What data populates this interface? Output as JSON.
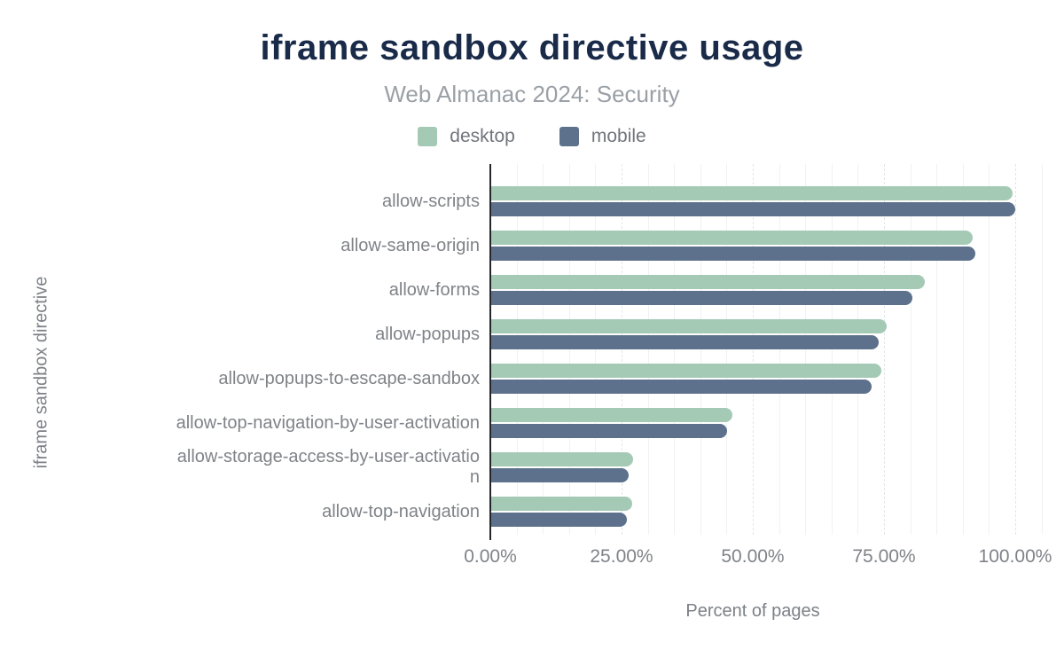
{
  "chart": {
    "title": "iframe sandbox directive usage",
    "subtitle": "Web Almanac 2024: Security",
    "xlabel": "Percent of pages",
    "ylabel": "iframe sandbox directive",
    "legend": {
      "items": [
        {
          "label": "desktop",
          "color": "#a4cab6"
        },
        {
          "label": "mobile",
          "color": "#5d718c"
        }
      ]
    },
    "colors": {
      "title_text": "#1a2b49",
      "subtitle_text": "#9aa0a6",
      "axis_text": "#7f8388",
      "axis_line": "#23262b",
      "desktop_bar": "#a4cab6",
      "mobile_bar": "#5d718c",
      "background": "#ffffff"
    }
  },
  "chart_data": {
    "type": "bar",
    "orientation": "horizontal",
    "title": "iframe sandbox directive usage",
    "subtitle": "Web Almanac 2024: Security",
    "xlabel": "Percent of pages",
    "ylabel": "iframe sandbox directive",
    "xlim": [
      0,
      105
    ],
    "x_tick_labels": [
      "0.00%",
      "25.00%",
      "50.00%",
      "75.00%",
      "100.00%"
    ],
    "x_tick_values": [
      0,
      25,
      50,
      75,
      100
    ],
    "grid": "vertical gridlines every 5%, dashed at 25% multiples",
    "legend_position": "top-center",
    "categories": [
      "allow-scripts",
      "allow-same-origin",
      "allow-forms",
      "allow-popups",
      "allow-popups-to-escape-sandbox",
      "allow-top-navigation-by-user-activation",
      "allow-storage-access-by-user-activation",
      "allow-top-navigation"
    ],
    "category_display_labels": [
      "allow-scripts",
      "allow-same-origin",
      "allow-forms",
      "allow-popups",
      "allow-popups-to-escape-sandbox",
      "allow-top-navigation-by-user-activation",
      "allow-storage-access-by-user-activatio\nn",
      "allow-top-navigation"
    ],
    "series": [
      {
        "name": "desktop",
        "color": "#a4cab6",
        "values": [
          99.3,
          91.7,
          82.6,
          75.3,
          74.3,
          45.9,
          27.0,
          26.8
        ]
      },
      {
        "name": "mobile",
        "color": "#5d718c",
        "values": [
          99.8,
          92.2,
          80.2,
          73.8,
          72.5,
          44.9,
          26.1,
          25.8
        ]
      }
    ],
    "value_unit": "percent of pages"
  }
}
